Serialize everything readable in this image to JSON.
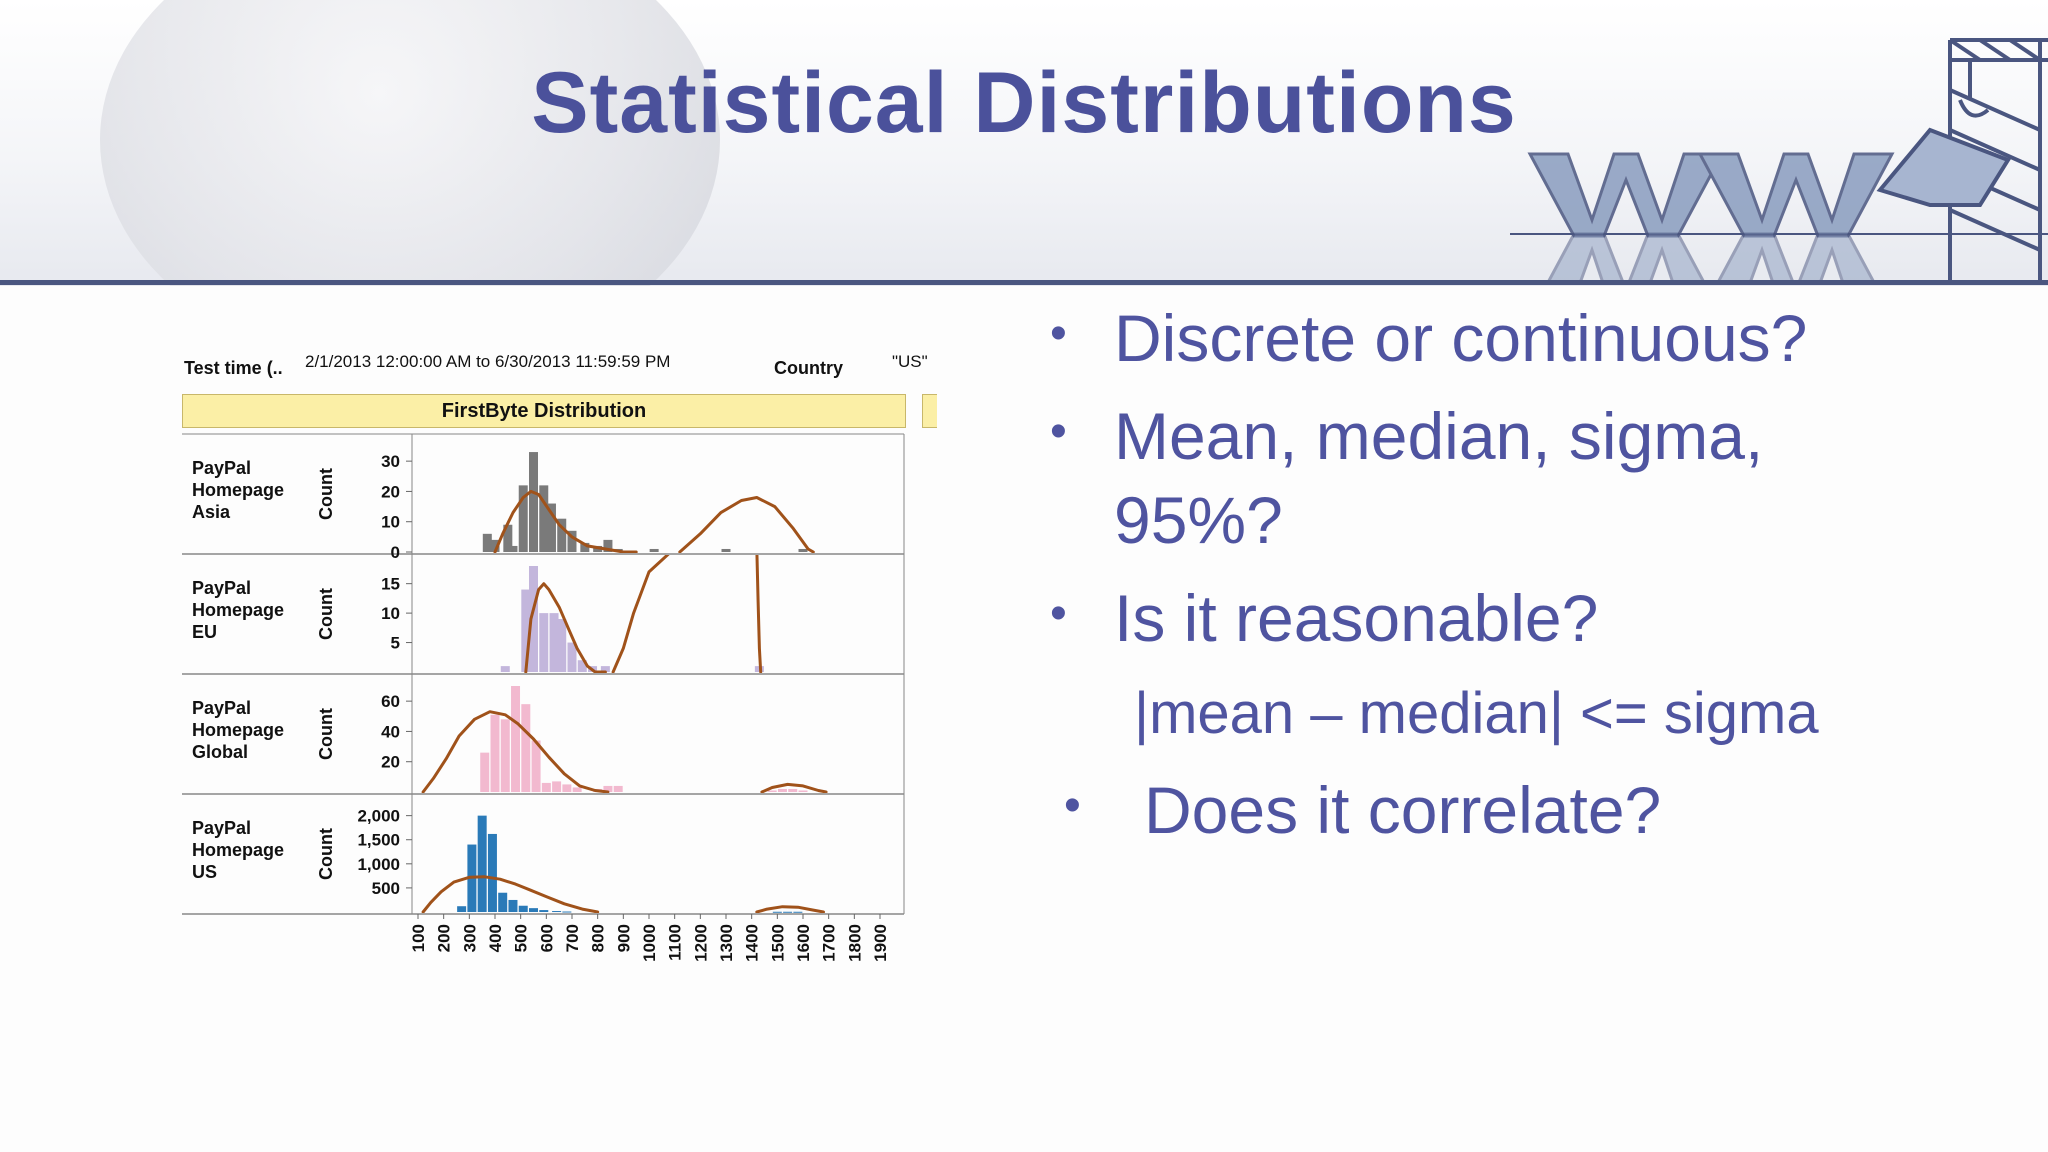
{
  "slide": {
    "title": "Statistical Distributions"
  },
  "bullets": [
    {
      "text": "Discrete or continuous?",
      "level": 1
    },
    {
      "text": "Mean, median, sigma,",
      "level": 1
    },
    {
      "text": "95%?",
      "level": 1,
      "continuation": true
    },
    {
      "text": "Is it reasonable?",
      "level": 1
    },
    {
      "text": "|mean – median| <= sigma",
      "level": 2
    },
    {
      "text": "Does it correlate?",
      "level": 1
    }
  ],
  "chart_meta": {
    "test_time_label": "Test time (..",
    "test_time_value": "2/1/2013 12:00:00 AM to 6/30/2013 11:59:59 PM",
    "country_label": "Country",
    "country_value": "\"US\"",
    "panel_title": "FirstByte Distribution",
    "y_axis_label": "Count"
  },
  "colors": {
    "title": "#4b519b",
    "bullets": "#4f54a0",
    "curve": "#a0521a",
    "asia": "#7a7a7a",
    "eu": "#c3b6dc",
    "global": "#f2b9cf",
    "us": "#2a7ab8"
  },
  "chart_data": {
    "type": "bar",
    "title": "FirstByte Distribution",
    "xlabel": "",
    "ylabel": "Count",
    "x_tick_labels": [
      "100",
      "200",
      "300",
      "400",
      "500",
      "600",
      "700",
      "800",
      "900",
      "1000",
      "1100",
      "1200",
      "1300",
      "1400",
      "1500",
      "1600",
      "1700",
      "1800",
      "1900"
    ],
    "xlim": [
      100,
      1900
    ],
    "series": [
      {
        "name": "PayPal Homepage Asia",
        "label_lines": [
          "PayPal",
          "Homepage",
          "Asia"
        ],
        "color": "#7a7a7a",
        "ylim": [
          0,
          35
        ],
        "y_ticks": [
          {
            "v": 0,
            "t": "0"
          },
          {
            "v": 10,
            "t": "10"
          },
          {
            "v": 20,
            "t": "20"
          },
          {
            "v": 30,
            "t": "30"
          }
        ],
        "bars": [
          [
            370,
            6
          ],
          [
            400,
            4
          ],
          [
            450,
            9
          ],
          [
            470,
            2
          ],
          [
            510,
            22
          ],
          [
            550,
            33
          ],
          [
            590,
            22
          ],
          [
            620,
            16
          ],
          [
            660,
            11
          ],
          [
            700,
            7
          ],
          [
            750,
            3
          ],
          [
            800,
            2
          ],
          [
            840,
            4
          ],
          [
            880,
            1
          ],
          [
            1020,
            1
          ],
          [
            1300,
            1
          ],
          [
            1600,
            1
          ]
        ],
        "curve": [
          [
            400,
            0
          ],
          [
            430,
            6
          ],
          [
            470,
            13
          ],
          [
            510,
            18
          ],
          [
            540,
            20
          ],
          [
            570,
            19
          ],
          [
            610,
            14
          ],
          [
            650,
            9
          ],
          [
            700,
            5
          ],
          [
            760,
            2
          ],
          [
            830,
            1
          ],
          [
            900,
            0
          ],
          [
            940,
            0
          ],
          [
            950,
            0
          ]
        ],
        "curve2": [
          [
            1120,
            0
          ],
          [
            1200,
            6
          ],
          [
            1280,
            13
          ],
          [
            1360,
            17
          ],
          [
            1420,
            18
          ],
          [
            1490,
            15
          ],
          [
            1560,
            8
          ],
          [
            1620,
            1
          ],
          [
            1640,
            0
          ]
        ]
      },
      {
        "name": "PayPal Homepage EU",
        "label_lines": [
          "PayPal",
          "Homepage",
          "EU"
        ],
        "color": "#c3b6dc",
        "ylim": [
          0,
          18
        ],
        "y_ticks": [
          {
            "v": 5,
            "t": "5"
          },
          {
            "v": 10,
            "t": "10"
          },
          {
            "v": 15,
            "t": "15"
          }
        ],
        "bars": [
          [
            440,
            1
          ],
          [
            520,
            14
          ],
          [
            550,
            18
          ],
          [
            590,
            10
          ],
          [
            630,
            10
          ],
          [
            660,
            9
          ],
          [
            700,
            5
          ],
          [
            740,
            2
          ],
          [
            780,
            1
          ],
          [
            830,
            1
          ],
          [
            1430,
            1
          ]
        ],
        "curve": [
          [
            520,
            0
          ],
          [
            540,
            9
          ],
          [
            570,
            14
          ],
          [
            590,
            15
          ],
          [
            610,
            14
          ],
          [
            650,
            11
          ],
          [
            690,
            7
          ],
          [
            720,
            4
          ],
          [
            760,
            1
          ],
          [
            790,
            0
          ],
          [
            830,
            0
          ]
        ],
        "curve2": [
          [
            860,
            0
          ],
          [
            900,
            4
          ],
          [
            940,
            10
          ],
          [
            1000,
            17
          ],
          [
            1100,
            21
          ]
        ],
        "curve3": [
          [
            1420,
            21
          ],
          [
            1425,
            12
          ],
          [
            1430,
            4
          ],
          [
            1435,
            0
          ]
        ]
      },
      {
        "name": "PayPal Homepage Global",
        "label_lines": [
          "PayPal",
          "Homepage",
          "Global"
        ],
        "color": "#f2b9cf",
        "ylim": [
          0,
          70
        ],
        "y_ticks": [
          {
            "v": 20,
            "t": "20"
          },
          {
            "v": 40,
            "t": "40"
          },
          {
            "v": 60,
            "t": "60"
          }
        ],
        "bars": [
          [
            360,
            26
          ],
          [
            400,
            51
          ],
          [
            440,
            48
          ],
          [
            480,
            70
          ],
          [
            520,
            58
          ],
          [
            560,
            34
          ],
          [
            600,
            6
          ],
          [
            640,
            7
          ],
          [
            680,
            5
          ],
          [
            720,
            3
          ],
          [
            800,
            2
          ],
          [
            840,
            4
          ],
          [
            880,
            4
          ],
          [
            1480,
            1
          ],
          [
            1520,
            2
          ],
          [
            1560,
            2
          ],
          [
            1600,
            1
          ]
        ],
        "curve": [
          [
            120,
            0
          ],
          [
            160,
            9
          ],
          [
            210,
            22
          ],
          [
            260,
            37
          ],
          [
            320,
            48
          ],
          [
            380,
            53
          ],
          [
            440,
            51
          ],
          [
            490,
            45
          ],
          [
            550,
            35
          ],
          [
            610,
            23
          ],
          [
            670,
            12
          ],
          [
            730,
            4
          ],
          [
            790,
            1
          ],
          [
            840,
            0
          ]
        ],
        "curve2": [
          [
            1440,
            0
          ],
          [
            1480,
            3
          ],
          [
            1540,
            5
          ],
          [
            1600,
            4
          ],
          [
            1660,
            1
          ],
          [
            1690,
            0
          ]
        ]
      },
      {
        "name": "PayPal Homepage US",
        "label_lines": [
          "PayPal",
          "Homepage",
          "US"
        ],
        "color": "#2a7ab8",
        "ylim": [
          0,
          2200
        ],
        "y_ticks": [
          {
            "v": 500,
            "t": "500"
          },
          {
            "v": 1000,
            "t": "1,000"
          },
          {
            "v": 1500,
            "t": "1,500"
          },
          {
            "v": 2000,
            "t": "2,000"
          }
        ],
        "bars": [
          [
            270,
            120
          ],
          [
            310,
            1400
          ],
          [
            350,
            2000
          ],
          [
            390,
            1620
          ],
          [
            430,
            400
          ],
          [
            470,
            250
          ],
          [
            510,
            130
          ],
          [
            550,
            80
          ],
          [
            590,
            40
          ],
          [
            640,
            20
          ],
          [
            680,
            10
          ],
          [
            1500,
            5
          ],
          [
            1540,
            5
          ],
          [
            1580,
            5
          ]
        ],
        "curve": [
          [
            120,
            0
          ],
          [
            150,
            200
          ],
          [
            190,
            420
          ],
          [
            240,
            620
          ],
          [
            300,
            720
          ],
          [
            360,
            730
          ],
          [
            420,
            680
          ],
          [
            480,
            580
          ],
          [
            540,
            450
          ],
          [
            600,
            320
          ],
          [
            670,
            170
          ],
          [
            740,
            60
          ],
          [
            800,
            0
          ]
        ],
        "curve2": [
          [
            1420,
            0
          ],
          [
            1460,
            60
          ],
          [
            1520,
            110
          ],
          [
            1580,
            100
          ],
          [
            1640,
            40
          ],
          [
            1680,
            0
          ]
        ]
      }
    ]
  }
}
